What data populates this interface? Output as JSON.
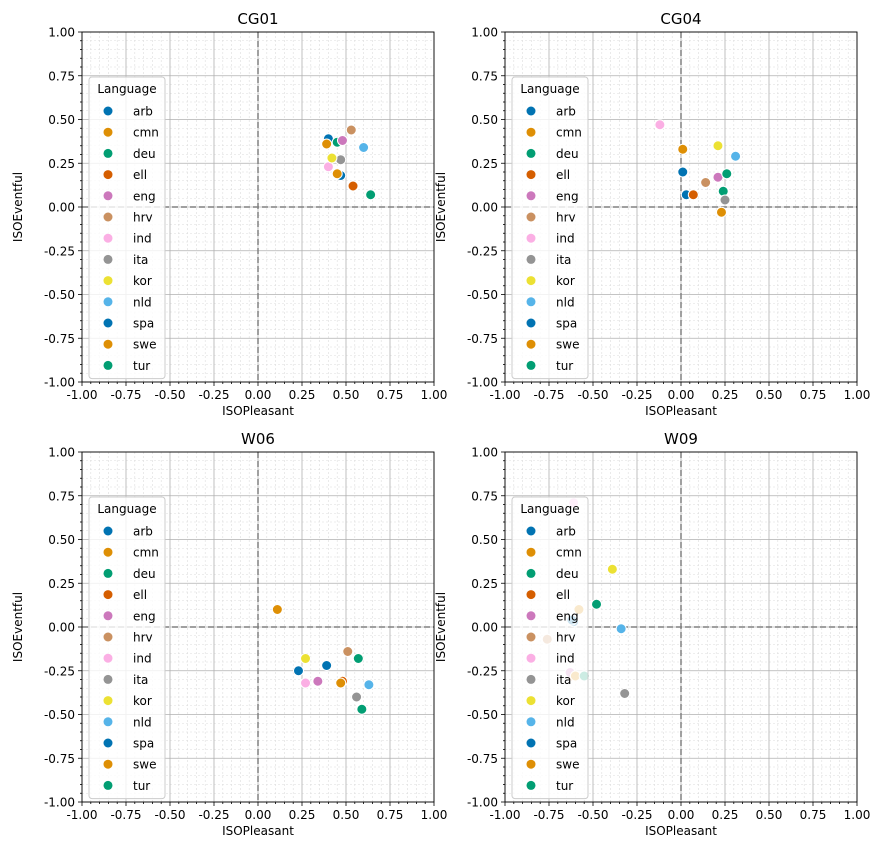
{
  "chart_data": {
    "type": "scatter",
    "legend": {
      "title": "Language",
      "placement": "upper-left",
      "entries": [
        {
          "name": "arb",
          "color": "#0173b2"
        },
        {
          "name": "cmn",
          "color": "#de8f05"
        },
        {
          "name": "deu",
          "color": "#029e73"
        },
        {
          "name": "ell",
          "color": "#d55e00"
        },
        {
          "name": "eng",
          "color": "#cc78bc"
        },
        {
          "name": "hrv",
          "color": "#ca9161"
        },
        {
          "name": "ind",
          "color": "#fbafe4"
        },
        {
          "name": "ita",
          "color": "#949494"
        },
        {
          "name": "kor",
          "color": "#ece133"
        },
        {
          "name": "nld",
          "color": "#56b4e9"
        },
        {
          "name": "spa",
          "color": "#0173b2"
        },
        {
          "name": "swe",
          "color": "#de8f05"
        },
        {
          "name": "tur",
          "color": "#029e73"
        }
      ]
    },
    "xlabel": "ISOPleasant",
    "ylabel": "ISOEventful",
    "xlim": [
      -1,
      1
    ],
    "ylim": [
      -1,
      1
    ],
    "ticks": [
      "-1.00",
      "-0.75",
      "-0.50",
      "-0.25",
      "0.00",
      "0.25",
      "0.50",
      "0.75",
      "1.00"
    ],
    "grid": "major and minor",
    "reference_lines": {
      "x": 0,
      "y": 0,
      "style": "dashed",
      "color": "#808080"
    },
    "panels": [
      {
        "title": "CG01",
        "points": [
          {
            "lang": "arb",
            "x": 0.4,
            "y": 0.39
          },
          {
            "lang": "cmn",
            "x": 0.39,
            "y": 0.36
          },
          {
            "lang": "deu",
            "x": 0.45,
            "y": 0.37
          },
          {
            "lang": "ell",
            "x": 0.54,
            "y": 0.12
          },
          {
            "lang": "eng",
            "x": 0.48,
            "y": 0.38
          },
          {
            "lang": "hrv",
            "x": 0.53,
            "y": 0.44
          },
          {
            "lang": "ind",
            "x": 0.4,
            "y": 0.23
          },
          {
            "lang": "ita",
            "x": 0.47,
            "y": 0.27
          },
          {
            "lang": "kor",
            "x": 0.42,
            "y": 0.28
          },
          {
            "lang": "nld",
            "x": 0.6,
            "y": 0.34
          },
          {
            "lang": "spa",
            "x": 0.47,
            "y": 0.18
          },
          {
            "lang": "swe",
            "x": 0.45,
            "y": 0.19
          },
          {
            "lang": "tur",
            "x": 0.64,
            "y": 0.07
          }
        ]
      },
      {
        "title": "CG04",
        "points": [
          {
            "lang": "arb",
            "x": 0.03,
            "y": 0.07
          },
          {
            "lang": "cmn",
            "x": 0.01,
            "y": 0.33
          },
          {
            "lang": "deu",
            "x": 0.24,
            "y": 0.09
          },
          {
            "lang": "ell",
            "x": 0.07,
            "y": 0.07
          },
          {
            "lang": "eng",
            "x": 0.21,
            "y": 0.17
          },
          {
            "lang": "hrv",
            "x": 0.14,
            "y": 0.14
          },
          {
            "lang": "ind",
            "x": -0.12,
            "y": 0.47
          },
          {
            "lang": "ita",
            "x": 0.25,
            "y": 0.04
          },
          {
            "lang": "kor",
            "x": 0.21,
            "y": 0.35
          },
          {
            "lang": "nld",
            "x": 0.31,
            "y": 0.29
          },
          {
            "lang": "spa",
            "x": 0.01,
            "y": 0.2
          },
          {
            "lang": "swe",
            "x": 0.23,
            "y": -0.03
          },
          {
            "lang": "tur",
            "x": 0.26,
            "y": 0.19
          }
        ]
      },
      {
        "title": "W06",
        "points": [
          {
            "lang": "arb",
            "x": 0.39,
            "y": -0.22
          },
          {
            "lang": "cmn",
            "x": 0.11,
            "y": 0.1
          },
          {
            "lang": "deu",
            "x": 0.57,
            "y": -0.18
          },
          {
            "lang": "ell",
            "x": 0.48,
            "y": -0.31
          },
          {
            "lang": "eng",
            "x": 0.34,
            "y": -0.31
          },
          {
            "lang": "hrv",
            "x": 0.51,
            "y": -0.14
          },
          {
            "lang": "ind",
            "x": 0.27,
            "y": -0.32
          },
          {
            "lang": "ita",
            "x": 0.56,
            "y": -0.4
          },
          {
            "lang": "kor",
            "x": 0.27,
            "y": -0.18
          },
          {
            "lang": "nld",
            "x": 0.63,
            "y": -0.33
          },
          {
            "lang": "spa",
            "x": 0.23,
            "y": -0.25
          },
          {
            "lang": "swe",
            "x": 0.47,
            "y": -0.32
          },
          {
            "lang": "tur",
            "x": 0.59,
            "y": -0.47
          }
        ]
      },
      {
        "title": "W09",
        "points": [
          {
            "lang": "arb",
            "x": -0.61,
            "y": 0.03
          },
          {
            "lang": "cmn",
            "x": -0.58,
            "y": 0.1
          },
          {
            "lang": "deu",
            "x": -0.48,
            "y": 0.13
          },
          {
            "lang": "ell",
            "x": -0.62,
            "y": -0.28
          },
          {
            "lang": "eng",
            "x": -0.63,
            "y": -0.26
          },
          {
            "lang": "hrv",
            "x": -0.76,
            "y": -0.07
          },
          {
            "lang": "ind",
            "x": -0.61,
            "y": 0.71
          },
          {
            "lang": "ita",
            "x": -0.32,
            "y": -0.38
          },
          {
            "lang": "kor",
            "x": -0.39,
            "y": 0.33
          },
          {
            "lang": "nld",
            "x": -0.34,
            "y": -0.01
          },
          {
            "lang": "spa",
            "x": -0.62,
            "y": 0.04
          },
          {
            "lang": "swe",
            "x": -0.6,
            "y": -0.28
          },
          {
            "lang": "tur",
            "x": -0.55,
            "y": -0.28
          }
        ]
      }
    ]
  }
}
